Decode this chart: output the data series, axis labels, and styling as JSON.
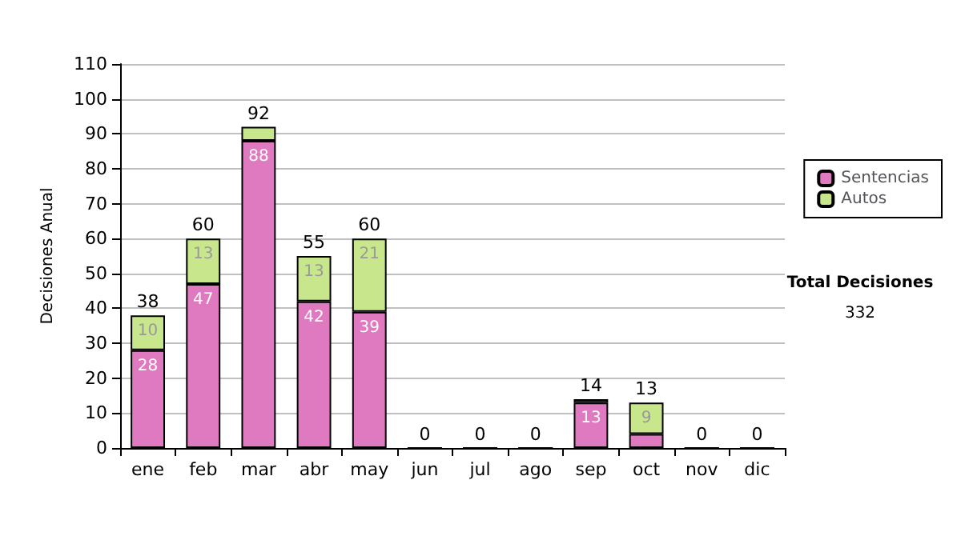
{
  "chart_data": {
    "type": "bar",
    "ylabel": "Decisiones Anual",
    "categories": [
      "ene",
      "feb",
      "mar",
      "abr",
      "may",
      "jun",
      "jul",
      "ago",
      "sep",
      "oct",
      "nov",
      "dic"
    ],
    "stacked": true,
    "series": [
      {
        "name": "Sentencias",
        "color": "#e07ac0",
        "values": [
          28,
          47,
          88,
          42,
          39,
          0,
          0,
          0,
          13,
          4,
          0,
          0
        ],
        "value_labels": [
          "28",
          "47",
          "88",
          "42",
          "39",
          null,
          null,
          null,
          "13",
          null,
          null,
          null
        ]
      },
      {
        "name": "Autos",
        "color": "#c8e68c",
        "values": [
          10,
          13,
          4,
          13,
          21,
          0,
          0,
          0,
          1,
          9,
          0,
          0
        ],
        "value_labels": [
          "10",
          "13",
          null,
          "13",
          "21",
          null,
          null,
          null,
          null,
          "9",
          null,
          null
        ]
      }
    ],
    "totals": [
      "38",
      "60",
      "92",
      "55",
      "60",
      "0",
      "0",
      "0",
      "14",
      "13",
      "0",
      "0"
    ],
    "ylim": [
      0,
      110
    ],
    "yticks": [
      0,
      10,
      20,
      30,
      40,
      50,
      60,
      70,
      80,
      90,
      100,
      110
    ],
    "grid": "y",
    "legend": "right",
    "annotations": [
      "Total Decisiones",
      "332"
    ]
  }
}
